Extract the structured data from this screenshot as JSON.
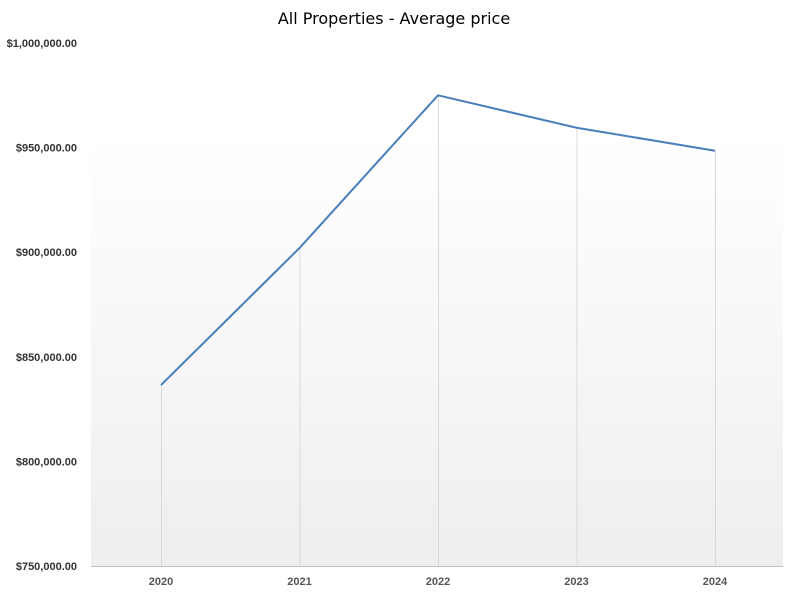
{
  "chart_data": {
    "type": "area",
    "title": "All Properties - Average price",
    "xlabel": "",
    "ylabel": "",
    "categories": [
      "2020",
      "2021",
      "2022",
      "2023",
      "2024"
    ],
    "series": [
      {
        "values": [
          836500,
          902000,
          975000,
          959500,
          948500
        ]
      }
    ],
    "ylim": [
      750000,
      1000000
    ],
    "yticks": [
      750000,
      800000,
      850000,
      900000,
      950000,
      1000000
    ],
    "ytick_labels": [
      "$750,000.00",
      "$800,000.00",
      "$850,000.00",
      "$900,000.00",
      "$950,000.00",
      "$1,000,000.00"
    ],
    "grid": false,
    "legend": "none",
    "colors": {
      "line": "#4a7ebb",
      "drop_lines": "#d9d9d9",
      "plot_bg_top": "#ffffff",
      "plot_bg_bottom": "#eeeeee"
    }
  }
}
